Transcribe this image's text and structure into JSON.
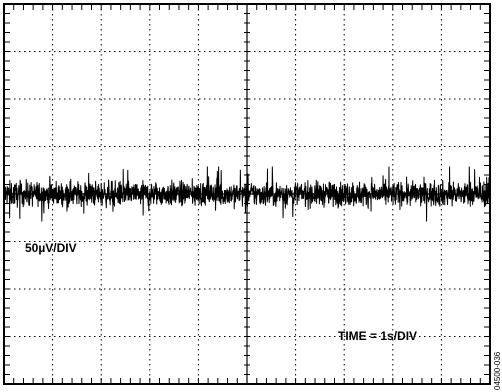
{
  "chart_data": {
    "type": "line",
    "title": "",
    "xlabel": "",
    "ylabel": "",
    "grid": true,
    "divisions": {
      "x": 10,
      "y": 8
    },
    "xlim": [
      0,
      10
    ],
    "ylim": [
      -200,
      200
    ],
    "x_unit": "s",
    "y_unit": "µV",
    "series": [
      {
        "name": "",
        "baseline": 0,
        "noise_peak_to_peak": 30,
        "description": "noise trace"
      }
    ],
    "annotations": {
      "vertical_scale": "50µV/DIV",
      "time_scale": "TIME = 1s/DIV"
    },
    "figure_id": "04500-036"
  },
  "colors": {
    "grid": "#000000",
    "trace": "#000000",
    "background": "#ffffff"
  }
}
